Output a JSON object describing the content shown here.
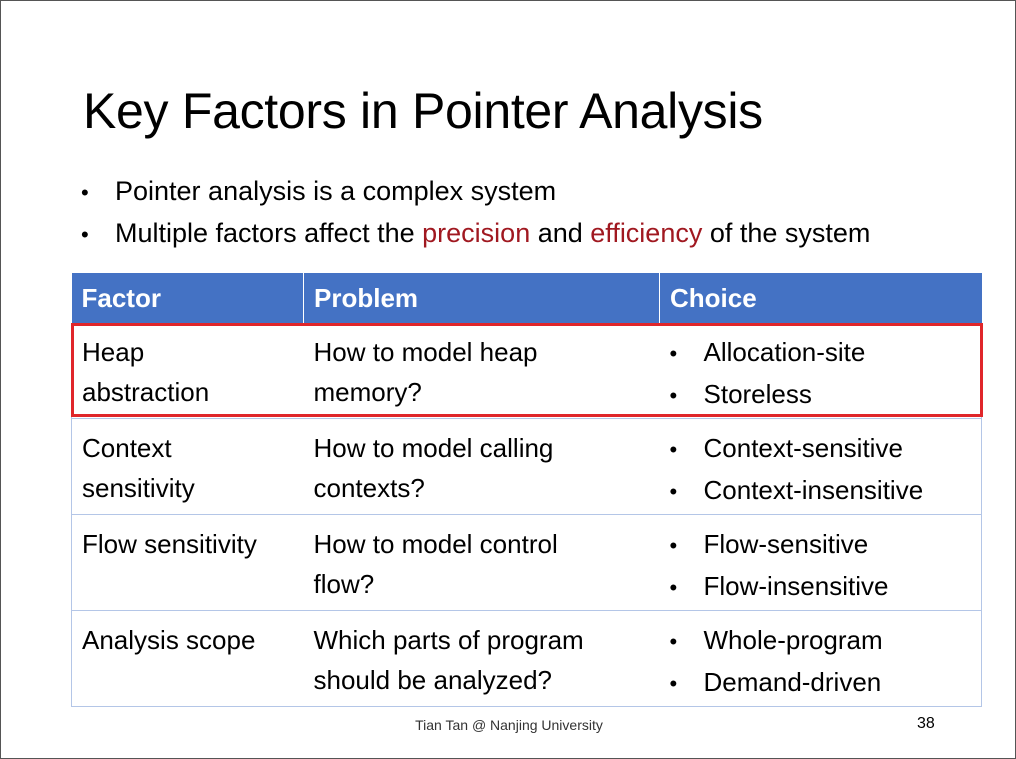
{
  "slide": {
    "title": "Key Factors in Pointer Analysis",
    "bullets": [
      {
        "parts": [
          "Pointer analysis is a complex system"
        ]
      },
      {
        "pre": "Multiple factors affect the ",
        "accent1": "precision",
        "mid": " and ",
        "accent2": "efficiency",
        "post": " of the system"
      }
    ],
    "accent_color": "#a01820",
    "table": {
      "header_color": "#4472c4",
      "headers": [
        "Factor",
        "Problem",
        "Choice"
      ],
      "rows": [
        {
          "factor": [
            "Heap",
            "abstraction"
          ],
          "problem": [
            "How to model heap",
            "memory?"
          ],
          "choices": [
            "Allocation-site",
            "Storeless"
          ]
        },
        {
          "factor": [
            "Context",
            "sensitivity"
          ],
          "problem": [
            "How to model calling",
            "contexts?"
          ],
          "choices": [
            "Context-sensitive",
            "Context-insensitive"
          ]
        },
        {
          "factor": [
            "Flow sensitivity"
          ],
          "problem": [
            "How to model control",
            "flow?"
          ],
          "choices": [
            "Flow-sensitive",
            "Flow-insensitive"
          ]
        },
        {
          "factor": [
            "Analysis scope"
          ],
          "problem": [
            "Which parts of program",
            "should be analyzed?"
          ],
          "choices": [
            "Whole-program",
            "Demand-driven"
          ]
        }
      ],
      "highlight_color": "#e0262a"
    },
    "footer": "Tian Tan @ Nanjing University",
    "page_number": "38"
  }
}
